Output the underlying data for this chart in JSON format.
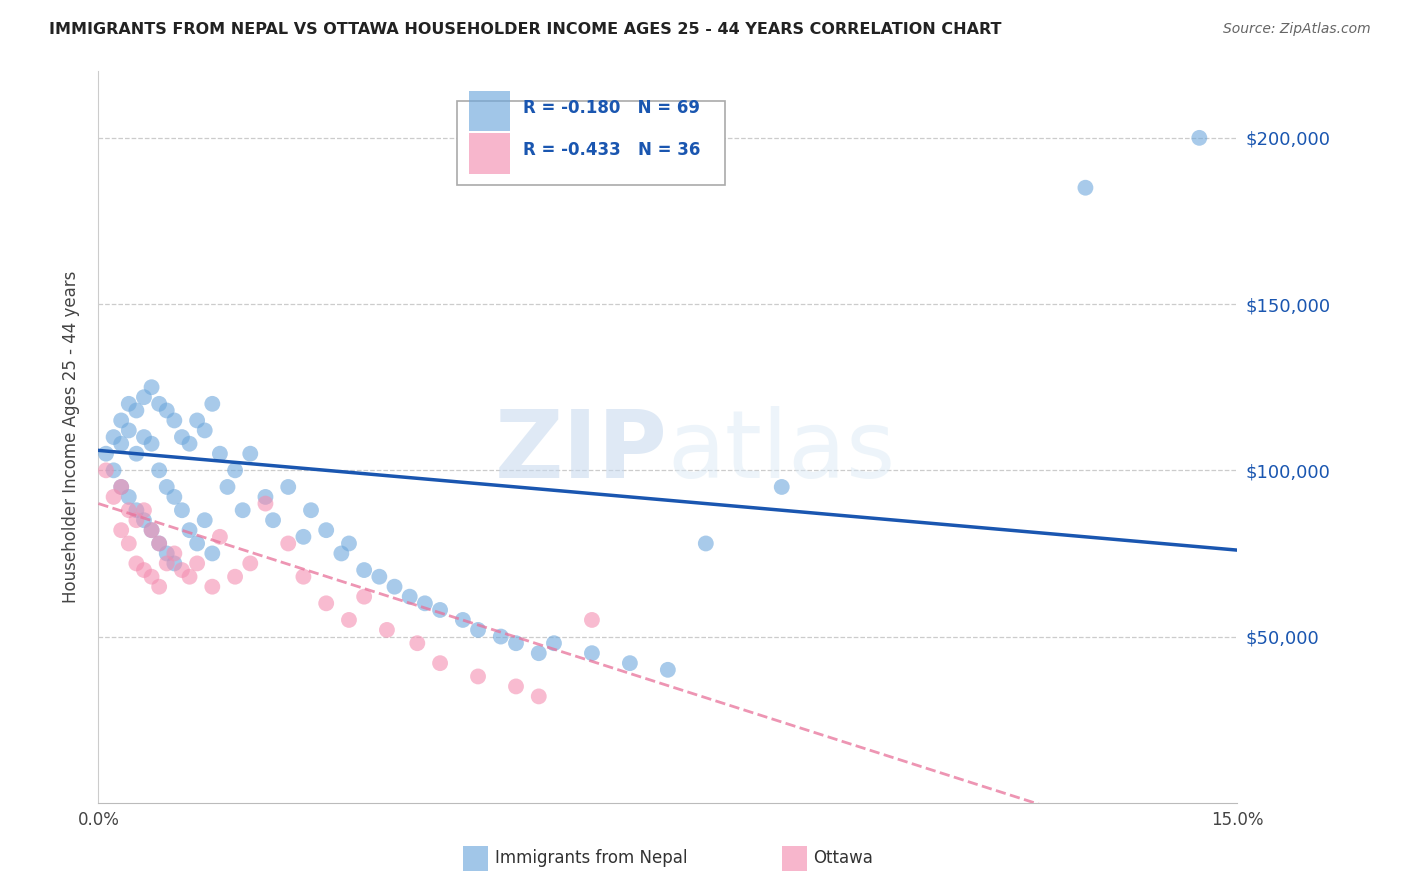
{
  "title": "IMMIGRANTS FROM NEPAL VS OTTAWA HOUSEHOLDER INCOME AGES 25 - 44 YEARS CORRELATION CHART",
  "source": "Source: ZipAtlas.com",
  "ylabel": "Householder Income Ages 25 - 44 years",
  "xmin": 0.0,
  "xmax": 0.15,
  "ymin": 0,
  "ymax": 220000,
  "yticks": [
    0,
    50000,
    100000,
    150000,
    200000
  ],
  "ytick_labels": [
    "",
    "$50,000",
    "$100,000",
    "$150,000",
    "$200,000"
  ],
  "xticks": [
    0.0,
    0.025,
    0.05,
    0.075,
    0.1,
    0.125,
    0.15
  ],
  "xtick_labels": [
    "0.0%",
    "",
    "",
    "",
    "",
    "",
    "15.0%"
  ],
  "legend_r1": "R = -0.180",
  "legend_n1": "N = 69",
  "legend_r2": "R = -0.433",
  "legend_n2": "N = 36",
  "series1_color": "#6fa8dc",
  "series2_color": "#f48fb1",
  "trendline1_color": "#1a56b0",
  "trendline2_color": "#e8729a",
  "watermark_zip": "ZIP",
  "watermark_atlas": "atlas",
  "nepal_x": [
    0.001,
    0.002,
    0.002,
    0.003,
    0.003,
    0.003,
    0.004,
    0.004,
    0.004,
    0.005,
    0.005,
    0.005,
    0.006,
    0.006,
    0.006,
    0.007,
    0.007,
    0.007,
    0.008,
    0.008,
    0.008,
    0.009,
    0.009,
    0.009,
    0.01,
    0.01,
    0.01,
    0.011,
    0.011,
    0.012,
    0.012,
    0.013,
    0.013,
    0.014,
    0.014,
    0.015,
    0.015,
    0.016,
    0.017,
    0.018,
    0.019,
    0.02,
    0.022,
    0.023,
    0.025,
    0.027,
    0.028,
    0.03,
    0.032,
    0.033,
    0.035,
    0.037,
    0.039,
    0.041,
    0.043,
    0.045,
    0.048,
    0.05,
    0.053,
    0.055,
    0.058,
    0.06,
    0.065,
    0.07,
    0.075,
    0.08,
    0.09,
    0.13,
    0.145
  ],
  "nepal_y": [
    105000,
    110000,
    100000,
    115000,
    108000,
    95000,
    120000,
    112000,
    92000,
    118000,
    105000,
    88000,
    122000,
    110000,
    85000,
    125000,
    108000,
    82000,
    120000,
    100000,
    78000,
    118000,
    95000,
    75000,
    115000,
    92000,
    72000,
    110000,
    88000,
    108000,
    82000,
    115000,
    78000,
    112000,
    85000,
    120000,
    75000,
    105000,
    95000,
    100000,
    88000,
    105000,
    92000,
    85000,
    95000,
    80000,
    88000,
    82000,
    75000,
    78000,
    70000,
    68000,
    65000,
    62000,
    60000,
    58000,
    55000,
    52000,
    50000,
    48000,
    45000,
    48000,
    45000,
    42000,
    40000,
    78000,
    95000,
    185000,
    200000
  ],
  "ottawa_x": [
    0.001,
    0.002,
    0.003,
    0.003,
    0.004,
    0.004,
    0.005,
    0.005,
    0.006,
    0.006,
    0.007,
    0.007,
    0.008,
    0.008,
    0.009,
    0.01,
    0.011,
    0.012,
    0.013,
    0.015,
    0.016,
    0.018,
    0.02,
    0.022,
    0.025,
    0.027,
    0.03,
    0.033,
    0.035,
    0.038,
    0.042,
    0.045,
    0.05,
    0.055,
    0.058,
    0.065
  ],
  "ottawa_y": [
    100000,
    92000,
    95000,
    82000,
    88000,
    78000,
    85000,
    72000,
    88000,
    70000,
    82000,
    68000,
    78000,
    65000,
    72000,
    75000,
    70000,
    68000,
    72000,
    65000,
    80000,
    68000,
    72000,
    90000,
    78000,
    68000,
    60000,
    55000,
    62000,
    52000,
    48000,
    42000,
    38000,
    35000,
    32000,
    55000
  ]
}
